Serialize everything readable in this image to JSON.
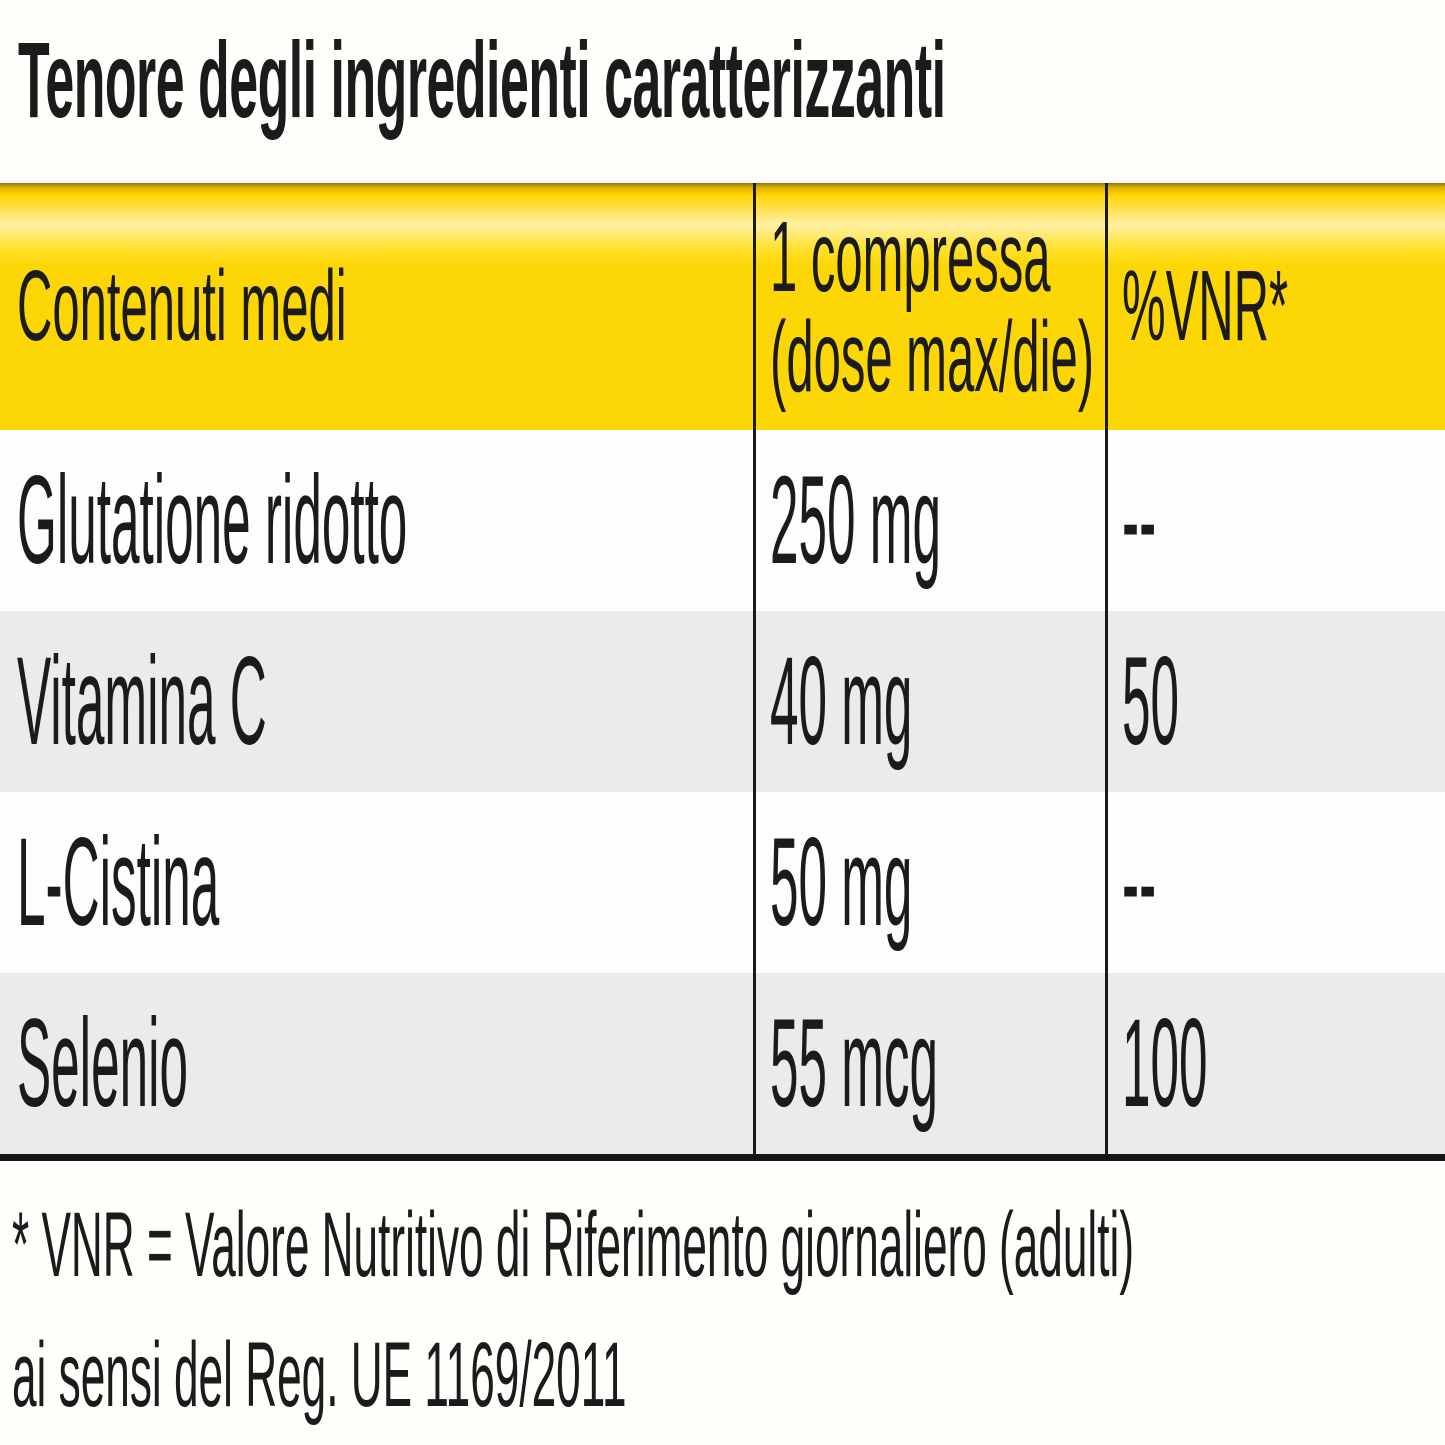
{
  "title": "Tenore degli ingredienti caratterizzanti",
  "table": {
    "header": {
      "col1": "Contenuti medi",
      "col2_line1": "1 compressa",
      "col2_line2": "(dose max/die)",
      "col3": "%VNR*"
    },
    "rows": [
      {
        "name": "Glutatione ridotto",
        "amount": "250 mg",
        "vnr": "--"
      },
      {
        "name": "Vitamina C",
        "amount": "40 mg",
        "vnr": "50"
      },
      {
        "name": "L-Cistina",
        "amount": "50 mg",
        "vnr": "--"
      },
      {
        "name": "Selenio",
        "amount": "55 mcg",
        "vnr": "100"
      }
    ]
  },
  "footnote": {
    "line1": "* VNR = Valore Nutritivo di Riferimento giornaliero (adulti)",
    "line2": "ai sensi del Reg. UE 1169/2011"
  },
  "colors": {
    "header_yellow": "#fcd705",
    "header_gradient_light": "#fff1a4",
    "header_gradient_dark": "#8f7404",
    "row_alt_gray": "#ebebeb",
    "rule_black": "#1a1a1a",
    "text_black": "#1b1b1b",
    "background": "#fffefa"
  }
}
